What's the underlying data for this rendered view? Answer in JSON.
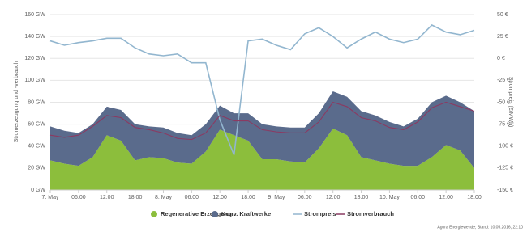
{
  "chart_data": {
    "type": "area",
    "y_label": "Stromerzeugung und -verbrauch",
    "y2_label": "Strompreis (€/MWh)",
    "source": "Agora Energiewende; Stand: 10.05.2016, 22:10",
    "categories": [
      "7. May",
      null,
      "06:00",
      null,
      "12:00",
      null,
      "18:00",
      null,
      "8. May",
      null,
      "06:00",
      null,
      "12:00",
      null,
      "18:00",
      null,
      "9. May",
      null,
      "06:00",
      null,
      "12:00",
      null,
      "18:00",
      null,
      "10. May",
      null,
      "06:00",
      null,
      "12:00",
      null,
      "18:00"
    ],
    "ylim": [
      0,
      160
    ],
    "yticks": [
      {
        "value": 0,
        "label": "0 GW"
      },
      {
        "value": 20,
        "label": "20 GW"
      },
      {
        "value": 40,
        "label": "40 GW"
      },
      {
        "value": 60,
        "label": "60 GW"
      },
      {
        "value": 80,
        "label": "80 GW"
      },
      {
        "value": 100,
        "label": "100 GW"
      },
      {
        "value": 120,
        "label": "120 GW"
      },
      {
        "value": 140,
        "label": "140 GW"
      },
      {
        "value": 160,
        "label": "160 GW"
      }
    ],
    "y2lim": [
      -150,
      50
    ],
    "y2ticks": [
      {
        "value": -150,
        "label": "-150 €"
      },
      {
        "value": -125,
        "label": "-125 €"
      },
      {
        "value": -100,
        "label": "-100 €"
      },
      {
        "value": -75,
        "label": "-75 €"
      },
      {
        "value": -50,
        "label": "-50 €"
      },
      {
        "value": -25,
        "label": "-25 €"
      },
      {
        "value": 0,
        "label": "0 €"
      },
      {
        "value": 25,
        "label": "25 €"
      },
      {
        "value": 50,
        "label": "50 €"
      }
    ],
    "grid": true,
    "series": [
      {
        "name": "Regenerative Erzeugung",
        "kind": "area",
        "color": "#8cbe3c",
        "values": [
          27,
          24,
          22,
          30,
          50,
          45,
          27,
          30,
          29,
          25,
          24,
          35,
          55,
          50,
          45,
          28,
          28,
          26,
          25,
          38,
          56,
          50,
          30,
          27,
          24,
          22,
          22,
          30,
          41,
          36,
          20
        ]
      },
      {
        "name": "Konv. Kraftwerke",
        "kind": "area",
        "color": "#5a6b8c",
        "values": [
          31,
          30,
          30,
          30,
          26,
          28,
          33,
          28,
          28,
          27,
          26,
          25,
          22,
          20,
          25,
          32,
          30,
          31,
          32,
          32,
          34,
          35,
          42,
          41,
          38,
          36,
          43,
          50,
          45,
          44,
          52
        ]
      },
      {
        "name": "Strompreis",
        "kind": "line",
        "axis": "y2",
        "color": "#92b6cf",
        "values": [
          20,
          15,
          18,
          20,
          23,
          23,
          12,
          5,
          3,
          5,
          -5,
          -5,
          -70,
          -110,
          20,
          22,
          15,
          10,
          28,
          35,
          25,
          12,
          22,
          30,
          22,
          18,
          22,
          38,
          30,
          27,
          32
        ]
      },
      {
        "name": "Stromverbrauch",
        "kind": "line",
        "color": "#8b3a62",
        "values": [
          50,
          48,
          50,
          58,
          68,
          66,
          57,
          55,
          52,
          47,
          46,
          52,
          68,
          63,
          63,
          55,
          53,
          52,
          52,
          62,
          80,
          76,
          66,
          63,
          57,
          55,
          62,
          75,
          80,
          76,
          72
        ]
      }
    ]
  }
}
